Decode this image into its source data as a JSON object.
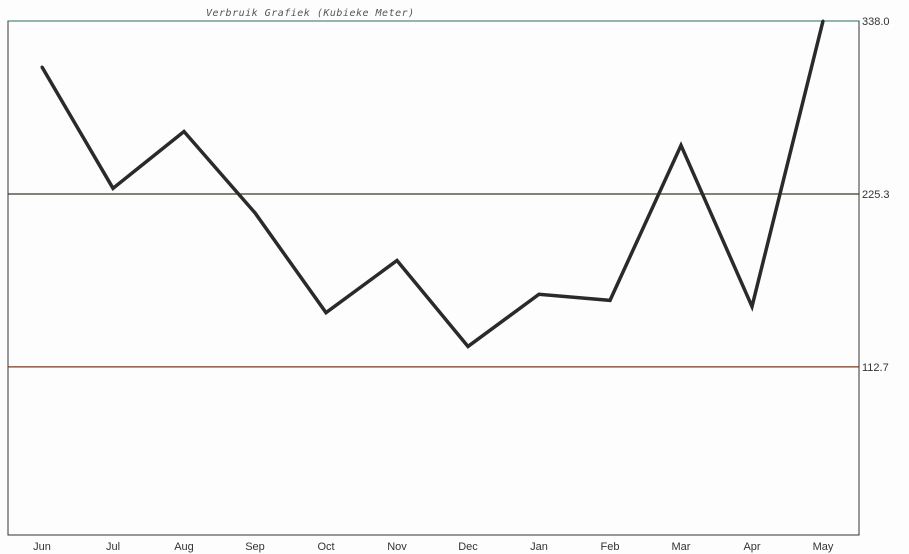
{
  "chart_data": {
    "type": "line",
    "title": "Verbruik Grafiek (Kubieke Meter)",
    "categories": [
      "Jun",
      "Jul",
      "Aug",
      "Sep",
      "Oct",
      "Nov",
      "Dec",
      "Jan",
      "Feb",
      "Mar",
      "Apr",
      "May"
    ],
    "series": [
      {
        "values": [
          308,
          229,
          266,
          213,
          148,
          182,
          126,
          160,
          156,
          257,
          152,
          338
        ]
      }
    ],
    "y_ticks": [
      "338.0",
      "225.3",
      "112.7"
    ],
    "y_tick_values": [
      338.0,
      225.3,
      112.7
    ],
    "ylim": [
      0,
      338.0
    ],
    "grid": "horizontal",
    "y_axis_position": "right",
    "colors": {
      "line": "#2a2a2a",
      "grid_top": "#2b6b6b",
      "grid_mid": "#3a3a2a",
      "grid_low": "#7a3a20",
      "frame": "#333333"
    }
  }
}
